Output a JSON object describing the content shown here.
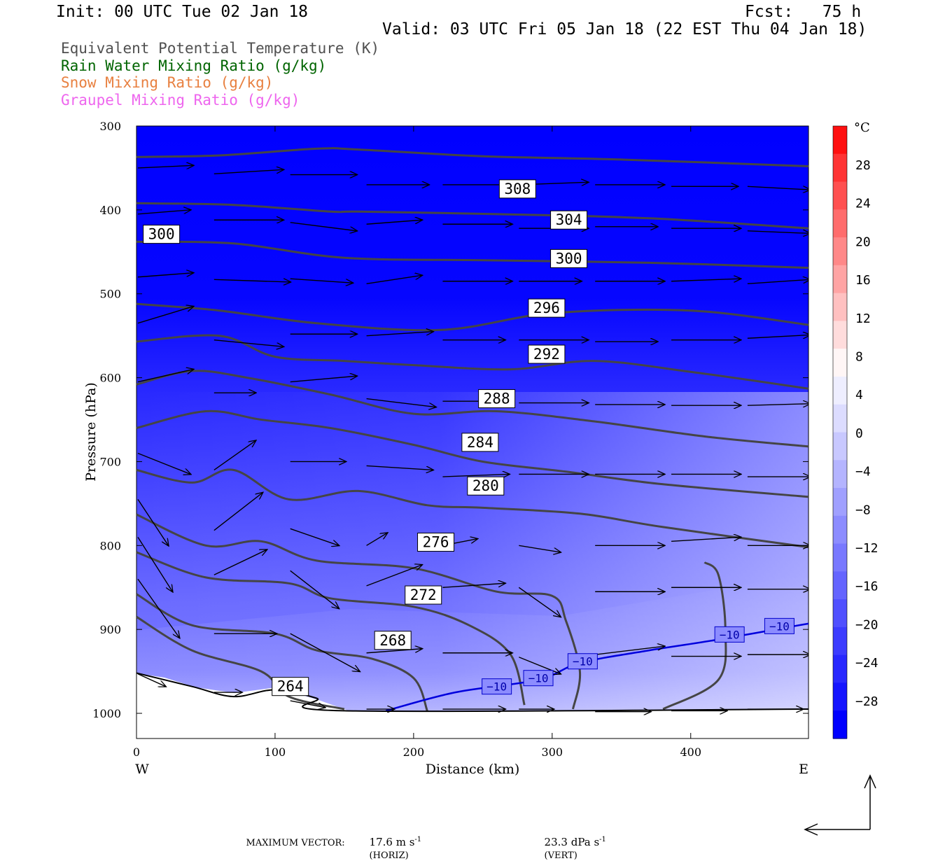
{
  "header": {
    "init": "Init: 00 UTC Tue 02 Jan 18",
    "fcst": "Fcst:   75 h",
    "valid": "Valid: 03 UTC Fri 05 Jan 18 (22 EST Thu 04 Jan 18)"
  },
  "legend": [
    {
      "label": "Equivalent Potential Temperature (K)",
      "color": "#505050"
    },
    {
      "label": "Rain Water Mixing Ratio (g/kg)",
      "color": "#006400"
    },
    {
      "label": "Snow Mixing Ratio (g/kg)",
      "color": "#e88040"
    },
    {
      "label": "Graupel Mixing Ratio (g/kg)",
      "color": "#ee66ee"
    }
  ],
  "axes": {
    "xlabel": "Distance (km)",
    "ylabel": "Pressure (hPa)",
    "west": "W",
    "east": "E"
  },
  "colorbar": {
    "unit": "°C",
    "ticks": [
      "28",
      "24",
      "20",
      "16",
      "12",
      "8",
      "4",
      "0",
      "−4",
      "−8",
      "−12",
      "−16",
      "−20",
      "−24",
      "−28"
    ],
    "colors": [
      "#ff1010",
      "#ff3434",
      "#ff5050",
      "#ff6c6c",
      "#ff8888",
      "#ffa4a4",
      "#ffc0c0",
      "#ffdcdc",
      "#fff6f6",
      "#eeeeff",
      "#dcdcff",
      "#c8c8ff",
      "#b4b4ff",
      "#a0a0ff",
      "#8c8cff",
      "#7878ff",
      "#6464ff",
      "#5050ff",
      "#3c3cff",
      "#2828ff",
      "#1414ff",
      "#0000ff"
    ]
  },
  "footer": {
    "max_vector_label": "MAXIMUM VECTOR:",
    "horiz_value": "17.6 m s",
    "horiz_exp": "-1",
    "horiz_tag": "(HORIZ)",
    "vert_value": "23.3 dPa s",
    "vert_exp": "-1",
    "vert_tag": "(VERT)"
  },
  "chart_data": {
    "type": "cross-section contour",
    "x_range": [
      0,
      485
    ],
    "y_range_hpa": [
      300,
      1030
    ],
    "y_scale": "linear",
    "x_ticks": [
      0,
      100,
      200,
      300,
      400
    ],
    "y_ticks": [
      300,
      400,
      500,
      600,
      700,
      800,
      900,
      1000
    ],
    "theta_e_contours": [
      {
        "value": 308,
        "labeled": true,
        "points": [
          [
            0,
            337
          ],
          [
            60,
            335
          ],
          [
            130,
            327
          ],
          [
            160,
            328
          ],
          [
            250,
            336
          ],
          [
            350,
            340
          ],
          [
            485,
            348
          ]
        ]
      },
      {
        "value": 304,
        "labeled": true,
        "points": [
          [
            0,
            392
          ],
          [
            70,
            394
          ],
          [
            140,
            402
          ],
          [
            160,
            402
          ],
          [
            260,
            405
          ],
          [
            370,
            410
          ],
          [
            485,
            422
          ]
        ]
      },
      {
        "value": 300,
        "labeled": true,
        "points": [
          [
            0,
            438
          ],
          [
            70,
            440
          ],
          [
            150,
            457
          ],
          [
            250,
            460
          ],
          [
            370,
            463
          ],
          [
            485,
            469
          ]
        ]
      },
      {
        "value": 296,
        "labeled": true,
        "points": [
          [
            0,
            512
          ],
          [
            60,
            520
          ],
          [
            130,
            535
          ],
          [
            220,
            543
          ],
          [
            300,
            523
          ],
          [
            400,
            520
          ],
          [
            485,
            537
          ]
        ]
      },
      {
        "value": 292,
        "labeled": true,
        "points": [
          [
            0,
            557
          ],
          [
            60,
            550
          ],
          [
            100,
            575
          ],
          [
            150,
            580
          ],
          [
            200,
            585
          ],
          [
            270,
            590
          ],
          [
            330,
            580
          ],
          [
            400,
            593
          ],
          [
            485,
            613
          ]
        ]
      },
      {
        "value": 288,
        "labeled": true,
        "points": [
          [
            0,
            608
          ],
          [
            40,
            592
          ],
          [
            80,
            600
          ],
          [
            140,
            620
          ],
          [
            200,
            643
          ],
          [
            260,
            640
          ],
          [
            330,
            652
          ],
          [
            410,
            670
          ],
          [
            485,
            682
          ]
        ]
      },
      {
        "value": 284,
        "labeled": true,
        "points": [
          [
            0,
            660
          ],
          [
            50,
            640
          ],
          [
            90,
            650
          ],
          [
            140,
            660
          ],
          [
            200,
            680
          ],
          [
            250,
            700
          ],
          [
            310,
            712
          ],
          [
            380,
            727
          ],
          [
            485,
            742
          ]
        ]
      },
      {
        "value": 280,
        "labeled": true,
        "points": [
          [
            0,
            710
          ],
          [
            40,
            725
          ],
          [
            70,
            710
          ],
          [
            110,
            745
          ],
          [
            160,
            735
          ],
          [
            210,
            752
          ],
          [
            250,
            755
          ],
          [
            320,
            762
          ],
          [
            380,
            778
          ],
          [
            485,
            802
          ]
        ]
      },
      {
        "value": 276,
        "labeled": true,
        "points": [
          [
            0,
            763
          ],
          [
            50,
            800
          ],
          [
            90,
            795
          ],
          [
            130,
            818
          ],
          [
            200,
            827
          ],
          [
            260,
            855
          ],
          [
            300,
            860
          ],
          [
            310,
            890
          ],
          [
            320,
            950
          ],
          [
            315,
            995
          ]
        ]
      },
      {
        "value": 272,
        "labeled": true,
        "points": [
          [
            0,
            808
          ],
          [
            50,
            838
          ],
          [
            110,
            845
          ],
          [
            140,
            863
          ],
          [
            200,
            873
          ],
          [
            240,
            895
          ],
          [
            270,
            930
          ],
          [
            280,
            990
          ]
        ]
      },
      {
        "value": 268,
        "labeled": true,
        "points": [
          [
            0,
            858
          ],
          [
            40,
            895
          ],
          [
            100,
            905
          ],
          [
            130,
            925
          ],
          [
            170,
            935
          ],
          [
            200,
            958
          ],
          [
            210,
            998
          ]
        ]
      },
      {
        "value": 264,
        "labeled": true,
        "points": [
          [
            0,
            885
          ],
          [
            40,
            925
          ],
          [
            90,
            950
          ],
          [
            110,
            980
          ],
          [
            150,
            995
          ]
        ]
      },
      {
        "value": 260,
        "labeled": false,
        "points": [
          [
            380,
            995
          ],
          [
            420,
            960
          ],
          [
            425,
            900
          ],
          [
            420,
            835
          ],
          [
            410,
            820
          ]
        ]
      }
    ],
    "isotherm_minus10": {
      "value": -10,
      "points": [
        [
          180,
          997
        ],
        [
          230,
          975
        ],
        [
          290,
          960
        ],
        [
          320,
          940
        ],
        [
          370,
          925
        ],
        [
          420,
          912
        ],
        [
          485,
          893
        ]
      ],
      "labels": [
        [
          260,
          968
        ],
        [
          290,
          958
        ],
        [
          322,
          938
        ],
        [
          428,
          906
        ],
        [
          464,
          896
        ]
      ]
    },
    "temperature_shading_note": "Blue shading ranges from about -29 °C aloft to about -4 °C near the surface at the eastern end",
    "terrain_hpa": [
      [
        0,
        952
      ],
      [
        40,
        968
      ],
      [
        70,
        980
      ],
      [
        100,
        972
      ],
      [
        130,
        982
      ],
      [
        150,
        997
      ],
      [
        485,
        995
      ]
    ]
  }
}
